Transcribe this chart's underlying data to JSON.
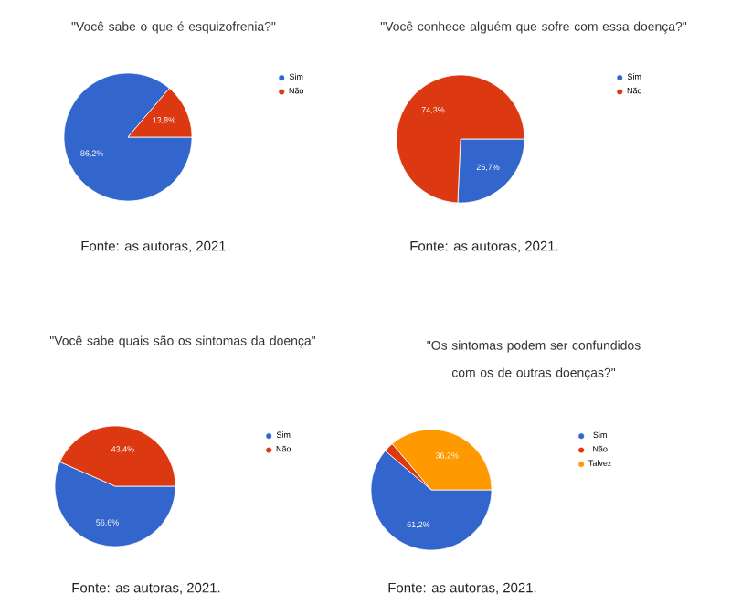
{
  "chart_data": [
    {
      "type": "pie",
      "title": "\"Você sabe o que é esquizofrenia?\"",
      "categories": [
        "Sim",
        "Não"
      ],
      "values": [
        86.2,
        13.8
      ],
      "colors": [
        "#3366cc",
        "#dc3912"
      ],
      "value_labels": [
        "86,2%",
        "13,8%"
      ],
      "legend": "right",
      "annotations": [
        "Fonte: as autoras, 2021."
      ]
    },
    {
      "type": "pie",
      "title": "\"Você conhece alguém que sofre com essa doença?\"",
      "categories": [
        "Sim",
        "Não"
      ],
      "values": [
        25.7,
        74.3
      ],
      "colors": [
        "#3366cc",
        "#dc3912"
      ],
      "value_labels": [
        "25,7%",
        "74,3%"
      ],
      "legend": "right",
      "annotations": [
        "Fonte: as autoras, 2021."
      ]
    },
    {
      "type": "pie",
      "title": "\"Você sabe quais são os sintomas da doença\"",
      "categories": [
        "Sim",
        "Não"
      ],
      "values": [
        56.6,
        43.4
      ],
      "colors": [
        "#3366cc",
        "#dc3912"
      ],
      "value_labels": [
        "56,6%",
        "43,4%"
      ],
      "legend": "right",
      "annotations": [
        "Fonte: as autoras, 2021."
      ]
    },
    {
      "type": "pie",
      "title": "\"Os sintomas podem ser confundidos com os de outras doenças?\"",
      "categories": [
        "Sim",
        "Não",
        "Talvez"
      ],
      "values": [
        61.2,
        2.6,
        36.2
      ],
      "colors": [
        "#3366cc",
        "#dc3912",
        "#ff9900"
      ],
      "value_labels": [
        "61,2%",
        null,
        "36,2%"
      ],
      "legend": "right",
      "annotations": [
        "Fonte: as autoras, 2021."
      ]
    }
  ]
}
